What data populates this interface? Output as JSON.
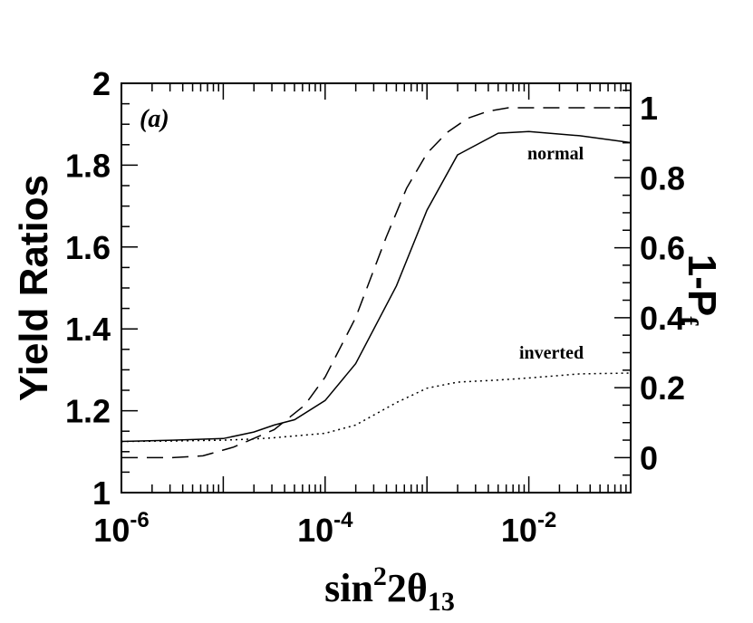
{
  "chart_data": {
    "type": "line",
    "panel_label": "(a)",
    "xlabel": {
      "base": "sin",
      "sup": "2",
      "mid": "2θ",
      "sub": "13"
    },
    "ylabel_left": "Yield Ratios",
    "ylabel_right": {
      "base": "1-P",
      "sub": "f"
    },
    "xscale": "log",
    "xlim_log10": [
      -6,
      -1
    ],
    "ylim_left": [
      1.0,
      2.0
    ],
    "ylim_right": [
      -0.1,
      1.07
    ],
    "x_ticks": [
      {
        "exp": -6,
        "base": "10",
        "sup": "-6"
      },
      {
        "exp": -4,
        "base": "10",
        "sup": "-4"
      },
      {
        "exp": -2,
        "base": "10",
        "sup": "-2"
      }
    ],
    "y_ticks_left": [
      {
        "value": 1.0,
        "label": "1"
      },
      {
        "value": 1.2,
        "label": "1.2"
      },
      {
        "value": 1.4,
        "label": "1.4"
      },
      {
        "value": 1.6,
        "label": "1.6"
      },
      {
        "value": 1.8,
        "label": "1.8"
      },
      {
        "value": 2.0,
        "label": "2"
      }
    ],
    "y_ticks_right": [
      {
        "value": 0,
        "label": "0"
      },
      {
        "value": 0.2,
        "label": "0.2"
      },
      {
        "value": 0.4,
        "label": "0.4"
      },
      {
        "value": 0.6,
        "label": "0.6"
      },
      {
        "value": 0.8,
        "label": "0.8"
      },
      {
        "value": 1.0,
        "label": "1"
      }
    ],
    "series": [
      {
        "name": "normal",
        "axis": "left",
        "style": "solid",
        "x_log10": [
          -6,
          -5.5,
          -5,
          -4.7,
          -4.5,
          -4.3,
          -4,
          -3.7,
          -3.3,
          -3,
          -2.7,
          -2.3,
          -2,
          -1.5,
          -1
        ],
        "values": [
          1.125,
          1.128,
          1.132,
          1.148,
          1.165,
          1.178,
          1.225,
          1.315,
          1.505,
          1.69,
          1.825,
          1.878,
          1.882,
          1.872,
          1.855
        ]
      },
      {
        "name": "inverted",
        "axis": "left",
        "style": "dotted",
        "x_log10": [
          -6,
          -5.5,
          -5,
          -4.7,
          -4.5,
          -4,
          -3.7,
          -3.3,
          -3,
          -2.7,
          -2.3,
          -2,
          -1.5,
          -1
        ],
        "values": [
          1.125,
          1.126,
          1.128,
          1.131,
          1.134,
          1.145,
          1.165,
          1.22,
          1.255,
          1.27,
          1.275,
          1.28,
          1.29,
          1.292
        ]
      },
      {
        "name": "1-Pf",
        "axis": "right",
        "style": "dashed",
        "x_log10": [
          -6,
          -5.5,
          -5.2,
          -4.9,
          -4.5,
          -4.2,
          -4,
          -3.7,
          -3.4,
          -3.2,
          -3,
          -2.8,
          -2.6,
          -2.4,
          -2.2,
          -2,
          -1.5,
          -1
        ],
        "values": [
          0,
          0,
          0.005,
          0.03,
          0.08,
          0.15,
          0.23,
          0.4,
          0.63,
          0.77,
          0.87,
          0.93,
          0.97,
          0.99,
          1.0,
          1.0,
          1.0,
          1.0
        ]
      }
    ],
    "annotations": [
      {
        "text": "normal",
        "x_log10": -1.65,
        "y": 1.85
      },
      {
        "text": "inverted",
        "x_log10": -1.62,
        "y": 1.345
      }
    ]
  }
}
